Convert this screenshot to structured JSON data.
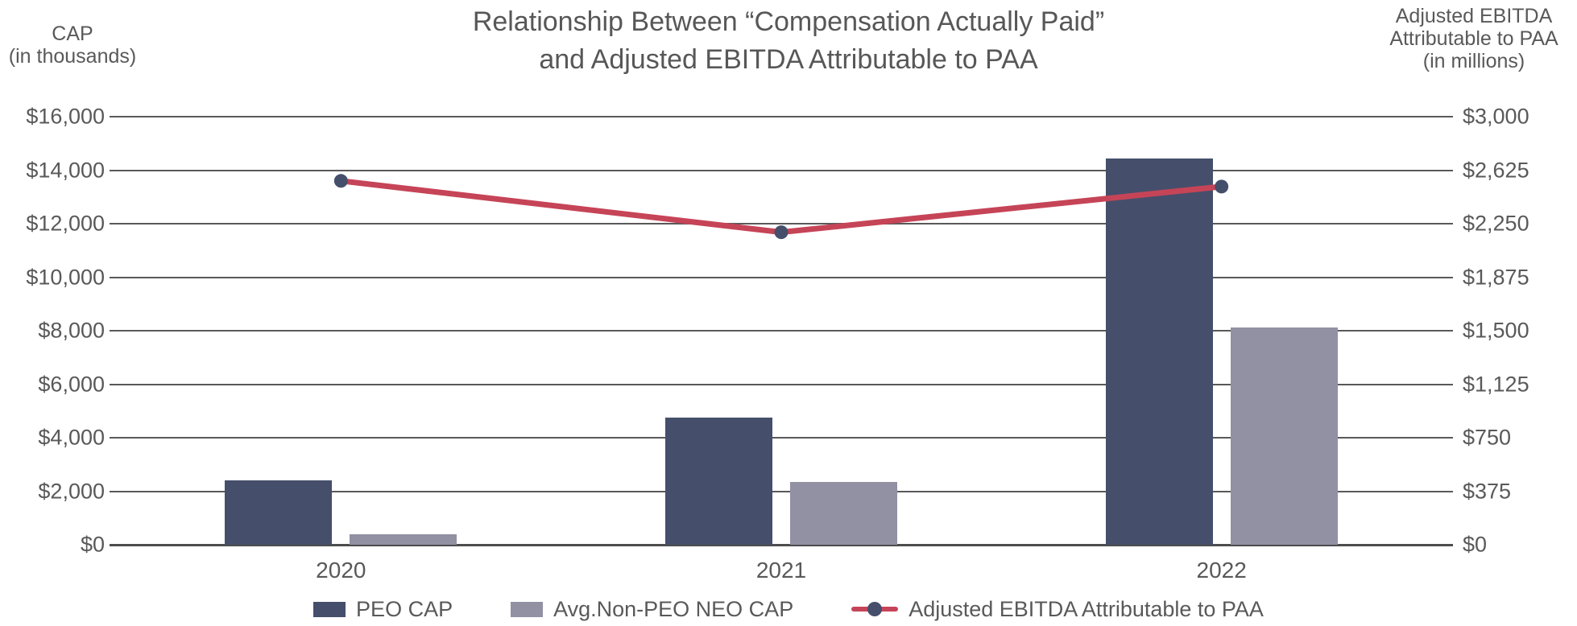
{
  "chart_data": {
    "type": "combo",
    "title_line1": "Relationship Between “Compensation Actually Paid”",
    "title_line2": "and Adjusted EBITDA Attributable to PAA",
    "categories": [
      "2020",
      "2021",
      "2022"
    ],
    "series": [
      {
        "name": "PEO CAP",
        "type": "bar",
        "axis": "left",
        "color": "#454f6b",
        "values": [
          2400,
          4750,
          14450
        ]
      },
      {
        "name": "Avg.Non-PEO NEO CAP",
        "type": "bar",
        "axis": "left",
        "color": "#9191a3",
        "values": [
          400,
          2360,
          8130
        ]
      },
      {
        "name": "Adjusted EBITDA Attributable to PAA",
        "type": "line",
        "axis": "right",
        "color": "#c64457",
        "marker_color": "#454f6b",
        "values": [
          2550,
          2190,
          2510
        ]
      }
    ],
    "left_axis": {
      "title_line1": "CAP",
      "title_line2": "(in thousands)",
      "min": 0,
      "max": 16000,
      "tick_labels": [
        "$16,000",
        "$14,000",
        "$12,000",
        "$10,000",
        "$8,000",
        "$6,000",
        "$4,000",
        "$2,000",
        "$0"
      ],
      "tick_values": [
        16000,
        14000,
        12000,
        10000,
        8000,
        6000,
        4000,
        2000,
        0
      ]
    },
    "right_axis": {
      "title_line1": "Adjusted EBITDA",
      "title_line2": "Attributable to PAA",
      "title_line3": "(in millions)",
      "min": 0,
      "max": 3000,
      "tick_labels": [
        "$3,000",
        "$2,625",
        "$2,250",
        "$1,875",
        "$1,500",
        "$1,125",
        "$750",
        "$375",
        "$0"
      ],
      "tick_values": [
        3000,
        2625,
        2250,
        1875,
        1500,
        1125,
        750,
        375,
        0
      ]
    },
    "grid": true,
    "legend_position": "bottom",
    "colors": {
      "text": "#595959",
      "gridline": "#595959",
      "axis_line": "#4d4d4d"
    }
  }
}
